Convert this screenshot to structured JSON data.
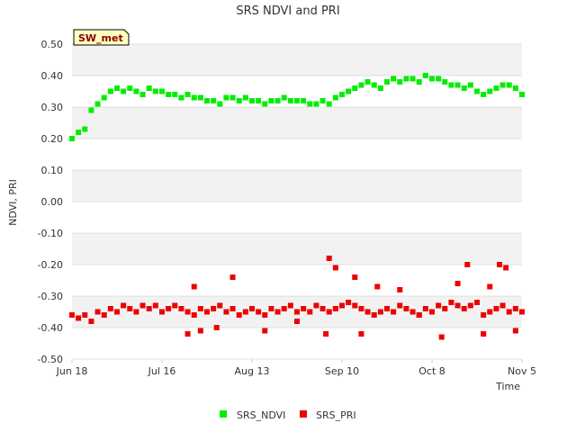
{
  "chart_data": {
    "type": "scatter",
    "title": "SRS NDVI and PRI",
    "station_tag": "SW_met",
    "xlabel": "Time",
    "ylabel": "NDVI, PRI",
    "ylim": [
      -0.5,
      0.5
    ],
    "y_ticks": [
      "0.50",
      "0.40",
      "0.30",
      "0.20",
      "0.10",
      "0.00",
      "-0.10",
      "-0.20",
      "-0.30",
      "-0.40",
      "-0.50"
    ],
    "x_range_days": [
      0,
      140
    ],
    "x_ticks": [
      {
        "label": "Jun 18",
        "day": 0
      },
      {
        "label": "Jul 16",
        "day": 28
      },
      {
        "label": "Aug 13",
        "day": 56
      },
      {
        "label": "Sep 10",
        "day": 84
      },
      {
        "label": "Oct 8",
        "day": 112
      },
      {
        "label": "Nov 5",
        "day": 140
      }
    ],
    "legend": [
      "SRS_NDVI",
      "SRS_PRI"
    ],
    "series": [
      {
        "name": "SRS_NDVI",
        "color": "#00ee00",
        "x": [
          0,
          2,
          4,
          6,
          8,
          10,
          12,
          14,
          16,
          18,
          20,
          22,
          24,
          26,
          28,
          30,
          32,
          34,
          36,
          38,
          40,
          42,
          44,
          46,
          48,
          50,
          52,
          54,
          56,
          58,
          60,
          62,
          64,
          66,
          68,
          70,
          72,
          74,
          76,
          78,
          80,
          82,
          84,
          86,
          88,
          90,
          92,
          94,
          96,
          98,
          100,
          102,
          104,
          106,
          108,
          110,
          112,
          114,
          116,
          118,
          120,
          122,
          124,
          126,
          128,
          130,
          132,
          134,
          136,
          138,
          140
        ],
        "y": [
          0.2,
          0.22,
          0.23,
          0.29,
          0.31,
          0.33,
          0.35,
          0.36,
          0.35,
          0.36,
          0.35,
          0.34,
          0.36,
          0.35,
          0.35,
          0.34,
          0.34,
          0.33,
          0.34,
          0.33,
          0.33,
          0.32,
          0.32,
          0.31,
          0.33,
          0.33,
          0.32,
          0.33,
          0.32,
          0.32,
          0.31,
          0.32,
          0.32,
          0.33,
          0.32,
          0.32,
          0.32,
          0.31,
          0.31,
          0.32,
          0.31,
          0.33,
          0.34,
          0.35,
          0.36,
          0.37,
          0.38,
          0.37,
          0.36,
          0.38,
          0.39,
          0.38,
          0.39,
          0.39,
          0.38,
          0.4,
          0.39,
          0.39,
          0.38,
          0.37,
          0.37,
          0.36,
          0.37,
          0.35,
          0.34,
          0.35,
          0.36,
          0.37,
          0.37,
          0.36,
          0.34
        ]
      },
      {
        "name": "SRS_PRI",
        "color": "#ee0000",
        "x": [
          0,
          2,
          4,
          6,
          8,
          10,
          12,
          14,
          16,
          18,
          20,
          22,
          24,
          26,
          28,
          30,
          32,
          34,
          36,
          38,
          40,
          42,
          44,
          46,
          48,
          50,
          52,
          54,
          56,
          58,
          60,
          62,
          64,
          66,
          68,
          70,
          72,
          74,
          76,
          78,
          80,
          82,
          84,
          86,
          88,
          90,
          92,
          94,
          96,
          98,
          100,
          102,
          104,
          106,
          108,
          110,
          112,
          114,
          116,
          118,
          120,
          122,
          124,
          126,
          128,
          130,
          132,
          134,
          136,
          138,
          140
        ],
        "y": [
          -0.36,
          -0.37,
          -0.36,
          -0.38,
          -0.35,
          -0.36,
          -0.34,
          -0.35,
          -0.33,
          -0.34,
          -0.35,
          -0.33,
          -0.34,
          -0.33,
          -0.35,
          -0.34,
          -0.33,
          -0.34,
          -0.35,
          -0.36,
          -0.34,
          -0.35,
          -0.34,
          -0.33,
          -0.35,
          -0.34,
          -0.36,
          -0.35,
          -0.34,
          -0.35,
          -0.36,
          -0.34,
          -0.35,
          -0.34,
          -0.33,
          -0.35,
          -0.34,
          -0.35,
          -0.33,
          -0.34,
          -0.35,
          -0.34,
          -0.33,
          -0.32,
          -0.33,
          -0.34,
          -0.35,
          -0.36,
          -0.35,
          -0.34,
          -0.35,
          -0.33,
          -0.34,
          -0.35,
          -0.36,
          -0.34,
          -0.35,
          -0.33,
          -0.34,
          -0.32,
          -0.33,
          -0.34,
          -0.33,
          -0.32,
          -0.36,
          -0.35,
          -0.34,
          -0.33,
          -0.35,
          -0.34,
          -0.35
        ],
        "outliers_x": [
          36,
          38,
          40,
          45,
          50,
          60,
          70,
          79,
          80,
          82,
          88,
          90,
          95,
          102,
          108,
          115,
          120,
          123,
          128,
          130,
          133,
          135,
          138
        ],
        "outliers_y": [
          -0.42,
          -0.27,
          -0.41,
          -0.4,
          -0.24,
          -0.41,
          -0.38,
          -0.42,
          -0.18,
          -0.21,
          -0.24,
          -0.42,
          -0.27,
          -0.28,
          -0.36,
          -0.43,
          -0.26,
          -0.2,
          -0.42,
          -0.27,
          -0.2,
          -0.21,
          -0.41
        ]
      }
    ]
  }
}
